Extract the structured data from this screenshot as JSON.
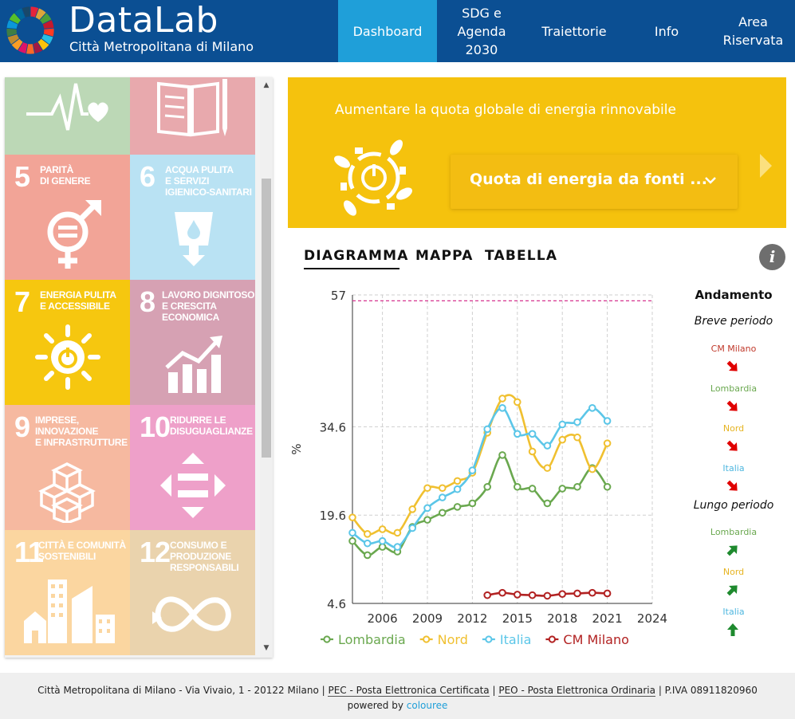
{
  "header": {
    "brand_title": "DataLab",
    "brand_subtitle": "Città Metropolitana di Milano",
    "nav": [
      {
        "label": "Dashboard",
        "active": true
      },
      {
        "label": "SDG e\nAgenda\n2030",
        "active": false
      },
      {
        "label": "Traiettorie",
        "active": false
      },
      {
        "label": "Info",
        "active": false
      },
      {
        "label": "Area\nRiservata",
        "active": false
      }
    ],
    "colors": {
      "bar": "#0b4f93",
      "active": "#1f9fd9"
    }
  },
  "sdg_tiles": [
    {
      "number": "",
      "title": "",
      "color": "#bcd8b6",
      "icon": "heartbeat-icon"
    },
    {
      "number": "",
      "title": "",
      "color": "#e8a9ad",
      "icon": "book-icon"
    },
    {
      "number": "5",
      "title": "PARITÀ\nDI GENERE",
      "color": "#f2a497",
      "icon": "gender-equality-icon"
    },
    {
      "number": "6",
      "title": "ACQUA PULITA\nE SERVIZI\nIGIENICO-SANITARI",
      "color": "#b9e2f3",
      "icon": "water-drop-icon"
    },
    {
      "number": "7",
      "title": "ENERGIA PULITA\nE ACCESSIBILE",
      "color": "#f6c70f",
      "icon": "sun-power-icon"
    },
    {
      "number": "8",
      "title": "LAVORO DIGNITOSO\nE CRESCITA\nECONOMICA",
      "color": "#d6a1b3",
      "icon": "growth-chart-icon"
    },
    {
      "number": "9",
      "title": "IMPRESE,\nINNOVAZIONE\nE INFRASTRUTTURE",
      "color": "#f6b9a0",
      "icon": "cubes-icon"
    },
    {
      "number": "10",
      "title": "RIDURRE LE\nDISUGUAGLIANZE",
      "color": "#eea0c9",
      "icon": "equality-arrows-icon"
    },
    {
      "number": "11",
      "title": "CITTÀ E COMUNITÀ\nSOSTENIBILI",
      "color": "#fbd6a0",
      "icon": "city-icon"
    },
    {
      "number": "12",
      "title": "CONSUMO E\nPRODUZIONE\nRESPONSABILI",
      "color": "#ead3ad",
      "icon": "infinity-icon"
    }
  ],
  "goal_banner": {
    "text": "Aumentare la quota globale di energia rinnovabile",
    "select_value": "Quota di energia da fonti ...",
    "color": "#f5c20d"
  },
  "view_tabs": [
    {
      "label": "DIAGRAMMA",
      "active": true
    },
    {
      "label": "MAPPA",
      "active": false
    },
    {
      "label": "TABELLA",
      "active": false
    }
  ],
  "info_icon": "i",
  "chart_data": {
    "type": "line",
    "ylabel": "%",
    "xlabel": "",
    "y_ticks": [
      4.6,
      19.6,
      34.6,
      57
    ],
    "y_tick_labels": [
      "4.6",
      "19.6",
      "34.6",
      "57"
    ],
    "ylim": [
      4.6,
      57
    ],
    "x_ticks": [
      2006,
      2009,
      2012,
      2015,
      2018,
      2021,
      2024
    ],
    "xlim": [
      2004,
      2024
    ],
    "target_line": 56,
    "grid": true,
    "legend_position": "bottom",
    "series": [
      {
        "name": "Lombardia",
        "color": "#6aa84f",
        "x": [
          2004,
          2005,
          2006,
          2007,
          2008,
          2009,
          2010,
          2011,
          2012,
          2013,
          2014,
          2015,
          2016,
          2017,
          2018,
          2019,
          2020,
          2021
        ],
        "y": [
          15.2,
          12.8,
          14.2,
          13.4,
          17.6,
          18.8,
          20.0,
          21.0,
          21.6,
          24.4,
          29.8,
          24.4,
          24.1,
          21.6,
          24.1,
          24.4,
          27.6,
          24.4
        ]
      },
      {
        "name": "Nord",
        "color": "#f0c030",
        "x": [
          2004,
          2005,
          2006,
          2007,
          2008,
          2009,
          2010,
          2011,
          2012,
          2013,
          2014,
          2015,
          2016,
          2017,
          2018,
          2019,
          2020,
          2021
        ],
        "y": [
          19.2,
          16.4,
          17.2,
          16.6,
          20.6,
          24.2,
          24.2,
          25.4,
          26.8,
          33.6,
          39.4,
          38.8,
          30.4,
          27.6,
          32.4,
          32.8,
          27.4,
          31.8
        ]
      },
      {
        "name": "Italia",
        "color": "#5bc6e8",
        "x": [
          2004,
          2005,
          2006,
          2007,
          2008,
          2009,
          2010,
          2011,
          2012,
          2013,
          2014,
          2015,
          2016,
          2017,
          2018,
          2019,
          2020,
          2021
        ],
        "y": [
          16.6,
          14.8,
          15.2,
          14.2,
          17.4,
          20.8,
          22.6,
          24.0,
          27.2,
          34.2,
          37.8,
          33.4,
          33.4,
          31.4,
          35.0,
          35.4,
          37.8,
          35.6
        ]
      },
      {
        "name": "CM Milano",
        "color": "#b22222",
        "x": [
          2013,
          2014,
          2015,
          2016,
          2017,
          2018,
          2019,
          2020,
          2021
        ],
        "y": [
          6.0,
          6.4,
          6.1,
          6.0,
          5.9,
          6.2,
          6.3,
          6.4,
          6.3
        ]
      }
    ]
  },
  "trend": {
    "title": "Andamento",
    "short_label": "Breve periodo",
    "long_label": "Lungo periodo",
    "short": [
      {
        "name": "CM Milano",
        "color": "#c0392b",
        "direction": "down-right",
        "arrow_color": "#e00000"
      },
      {
        "name": "Lombardia",
        "color": "#6aa84f",
        "direction": "down-right",
        "arrow_color": "#e00000"
      },
      {
        "name": "Nord",
        "color": "#e6b422",
        "direction": "down-right",
        "arrow_color": "#e00000"
      },
      {
        "name": "Italia",
        "color": "#4fb7df",
        "direction": "down-right",
        "arrow_color": "#e00000"
      }
    ],
    "long": [
      {
        "name": "Lombardia",
        "color": "#6aa84f",
        "direction": "up-right",
        "arrow_color": "#1e8a2e"
      },
      {
        "name": "Nord",
        "color": "#e6b422",
        "direction": "up-right",
        "arrow_color": "#1e8a2e"
      },
      {
        "name": "Italia",
        "color": "#4fb7df",
        "direction": "up",
        "arrow_color": "#1e8a2e"
      }
    ]
  },
  "footer": {
    "address": "Città Metropolitana di Milano - Via Vivaio, 1 - 20122 Milano |",
    "pec": "PEC - Posta Elettronica Certificata",
    "sep": "|",
    "peo": "PEO - Posta Elettronica Ordinaria",
    "piva": "| P.IVA 08911820960",
    "powered_label": "powered by",
    "powered_brand": "colouree"
  }
}
